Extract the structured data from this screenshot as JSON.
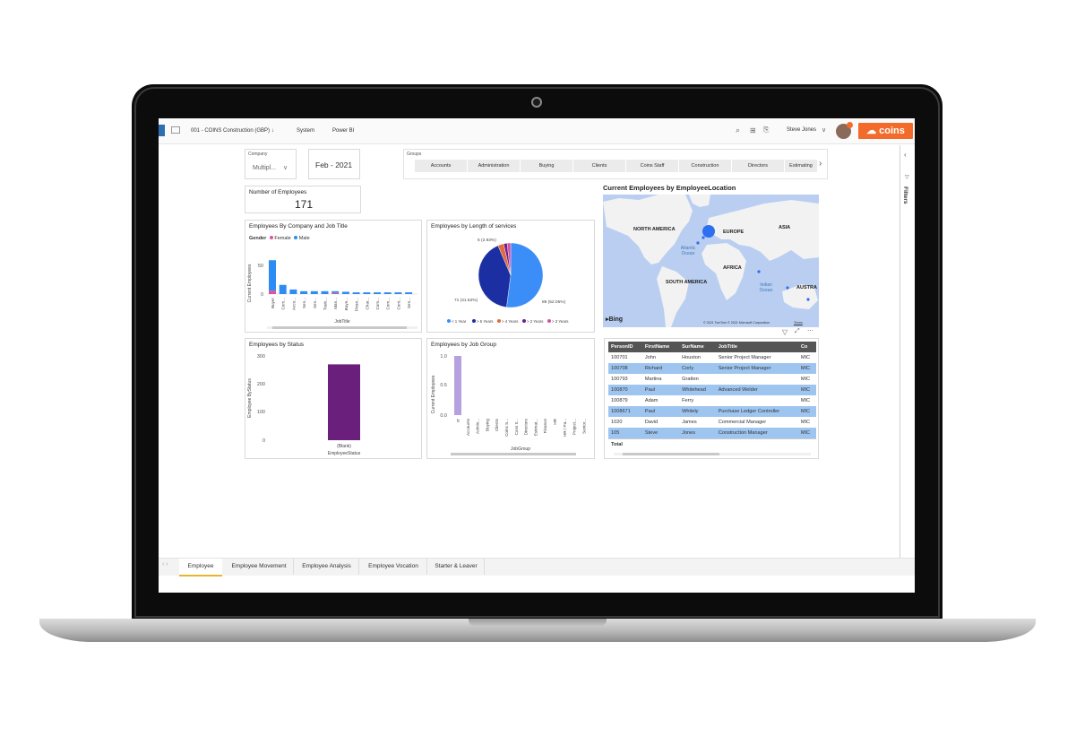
{
  "topbar": {
    "company_crumb": "001 - COINS Construction (GBP)",
    "system_crumb": "System",
    "powerbi_crumb": "Power BI",
    "user_name": "Steve Jones",
    "brand": "coins"
  },
  "slicers": {
    "company_label": "Company",
    "company_value": "Multipl...",
    "date_value": "Feb - 2021",
    "groups_label": "Groups",
    "groups": [
      "Accounts",
      "Administration",
      "Buying",
      "Clients",
      "Coins Staff",
      "Construction",
      "Directors",
      "Estimating"
    ]
  },
  "kpi": {
    "label": "Number of Employees",
    "value": "171"
  },
  "filters_pane": {
    "label": "Filters"
  },
  "charts": {
    "company_job_title": {
      "title": "Employees By Company and Job Title",
      "legend_title": "Gender",
      "legend": [
        "Female",
        "Male"
      ],
      "ylabel": "Current Employees",
      "xlabel": "JobTitle",
      "y_ticks": [
        "50",
        "0"
      ]
    },
    "length_of_service": {
      "title": "Employees by Length of services",
      "label_a": "5 (2.93%)",
      "label_b": "71 (41.52%)",
      "label_c": "89 (52.05%)",
      "legend": [
        "< 1 Year",
        "> 5 Years",
        "> 4 Years",
        "> 2 Years",
        "> 3 Years"
      ]
    },
    "map": {
      "title": "Current Employees by EmployeeLocation",
      "labels": [
        "NORTH AMERICA",
        "EUROPE",
        "ASIA",
        "AFRICA",
        "SOUTH AMERICA",
        "AUSTRA"
      ],
      "oceans": [
        "Atlantic Ocean",
        "Indian Ocean"
      ],
      "bing": "Bing",
      "copyright": "© 2021 TomTom © 2021 Microsoft Corporation",
      "terms": "Terms"
    },
    "status": {
      "title": "Employees by Status",
      "ylabel": "Employee ByStatus",
      "xlabel": "EmployeeStatus",
      "y_ticks": [
        "300",
        "200",
        "100",
        "0"
      ]
    },
    "job_group": {
      "title": "Employees by Job Group",
      "ylabel": "Current Employees",
      "xlabel": "JobGroup",
      "y_ticks": [
        "1.0",
        "0.5",
        "0.0"
      ]
    }
  },
  "chart_data": [
    {
      "type": "bar",
      "title": "Employees By Company and Job Title",
      "xlabel": "JobTitle",
      "ylabel": "Current Employees",
      "categories": [
        "Buyer",
        "Com...",
        "Acco...",
        "Sen...",
        "Sen...",
        "Train...",
        "Man...",
        "Buye...",
        "Finan...",
        "Char...",
        "Com...",
        "Com...",
        "Cont...",
        "Sen..."
      ],
      "series": [
        {
          "name": "Female",
          "values": [
            6,
            0,
            0,
            0,
            0,
            0,
            2,
            0,
            0,
            0,
            0,
            0,
            0,
            0
          ]
        },
        {
          "name": "Male",
          "values": [
            53,
            16,
            8,
            5,
            5,
            5,
            3,
            4,
            3,
            3,
            3,
            3,
            3,
            3
          ]
        }
      ],
      "ylim": [
        0,
        70
      ]
    },
    {
      "type": "pie",
      "title": "Employees by Length of services",
      "categories": [
        "< 1 Year",
        "> 5 Years",
        "> 4 Years",
        "> 2 Years",
        "> 3 Years"
      ],
      "values": [
        89,
        71,
        5,
        3,
        3
      ]
    },
    {
      "type": "bar",
      "title": "Employees by Status",
      "xlabel": "EmployeeStatus",
      "ylabel": "Employee ByStatus",
      "categories": [
        "(Blank)"
      ],
      "values": [
        270
      ],
      "ylim": [
        0,
        300
      ]
    },
    {
      "type": "bar",
      "title": "Employees by Job Group",
      "xlabel": "JobGroup",
      "ylabel": "Current Employees",
      "categories": [
        "IT",
        "Accounts",
        "Admin...",
        "Buying",
        "Clients",
        "Coins S...",
        "Cons tr...",
        "Directors",
        "Estimat...",
        "Finance",
        "HR",
        "HR / Pa...",
        "Project...",
        "Senior..."
      ],
      "values": [
        1,
        0,
        0,
        0,
        0,
        0,
        0,
        0,
        0,
        0,
        0,
        0,
        0,
        0
      ],
      "ylim": [
        0,
        1
      ]
    }
  ],
  "table": {
    "headers": [
      "PersonID",
      "FirstName",
      "SurName",
      "JobTitle",
      "Co"
    ],
    "rows": [
      [
        "100701",
        "John",
        "Houston",
        "Senior Project Manager",
        "MIC"
      ],
      [
        "100708",
        "Richard",
        "Corly",
        "Senior Project Manager",
        "MIC"
      ],
      [
        "100793",
        "Martina",
        "Gratten",
        "",
        "MIC"
      ],
      [
        "100870",
        "Paul",
        "Whitehead",
        "Advanced Welder",
        "MIC"
      ],
      [
        "100879",
        "Adam",
        "Ferry",
        "",
        "MIC"
      ],
      [
        "1008671",
        "Paul",
        "Whitely",
        "Purchase Ledger Controller",
        "MIC"
      ],
      [
        "1020",
        "David",
        "James",
        "Commercial Manager",
        "MIC"
      ],
      [
        "105",
        "Steve",
        "Jones",
        "Construction Manager",
        "MIC"
      ]
    ],
    "total_label": "Total"
  },
  "page_tabs": [
    "Employee",
    "Employee Movement",
    "Employee Analysis",
    "Employee Vocation",
    "Starter & Leaver"
  ],
  "colors": {
    "male": "#2c8cf4",
    "female": "#e0529f",
    "status_bar": "#6b1f7c",
    "job_group_bar": "#b6a1e0",
    "brand": "#f26b2a"
  }
}
